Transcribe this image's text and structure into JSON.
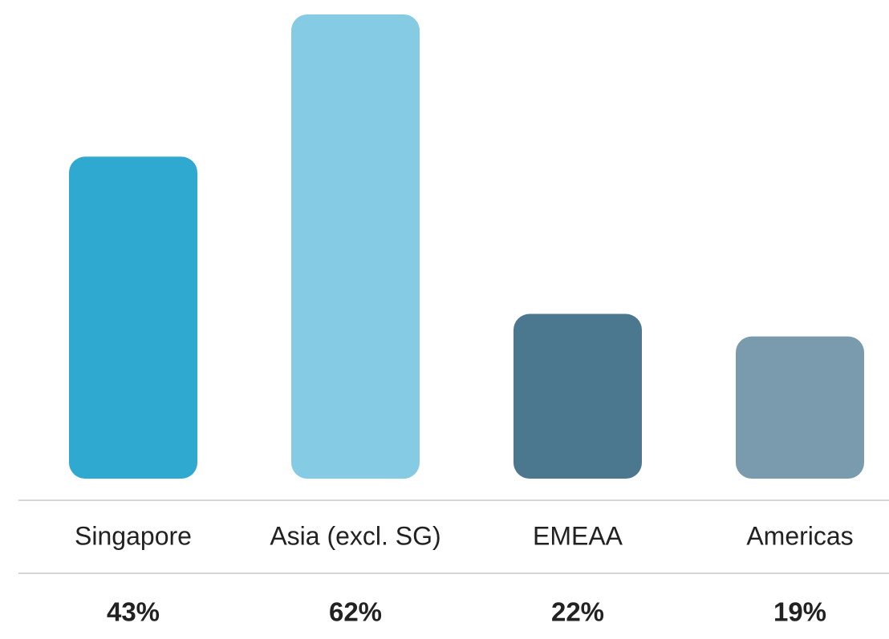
{
  "chart_data": {
    "type": "bar",
    "categories": [
      "Singapore",
      "Asia (excl. SG)",
      "EMEAA",
      "Americas"
    ],
    "values": [
      43,
      62,
      22,
      19
    ],
    "value_labels": [
      "43%",
      "62%",
      "22%",
      "19%"
    ],
    "colors": [
      "#2fa9cf",
      "#84cbe3",
      "#4b778f",
      "#7a9bad"
    ]
  }
}
